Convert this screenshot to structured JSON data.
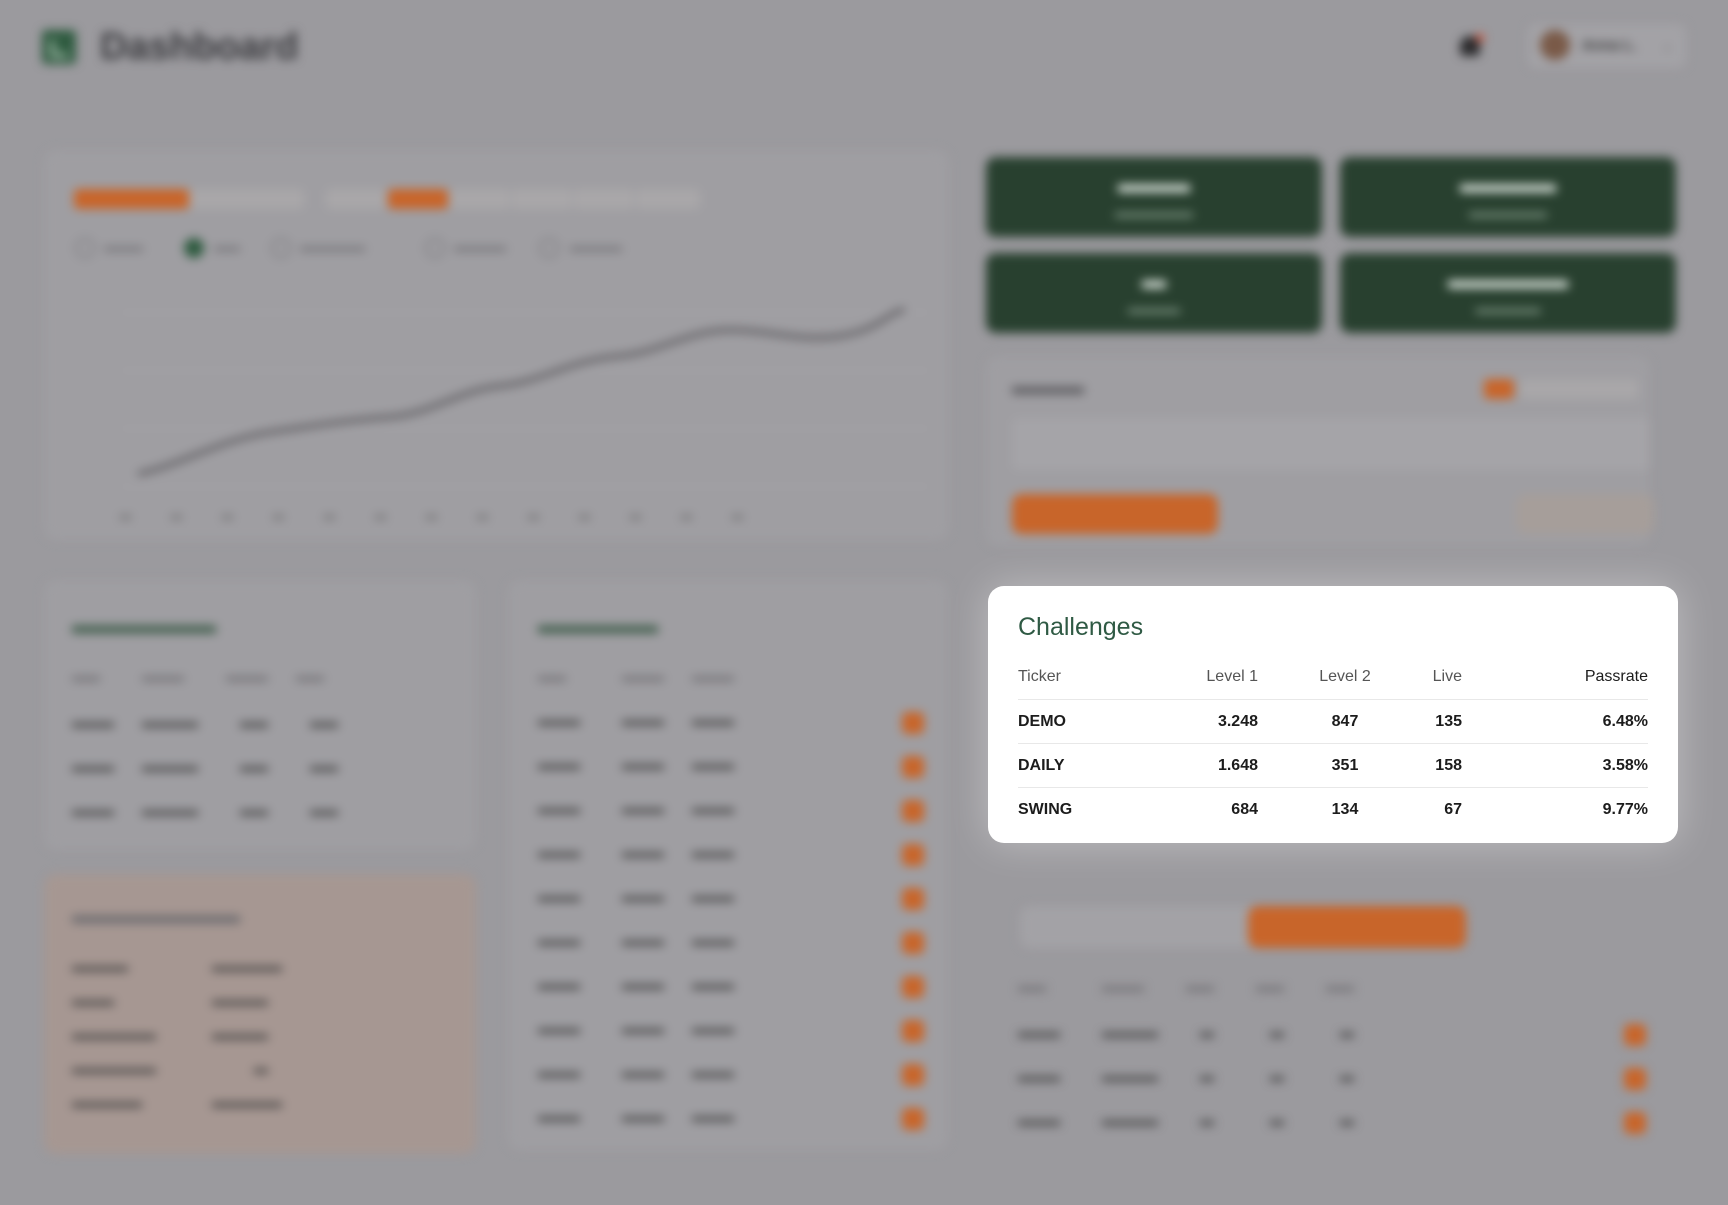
{
  "header": {
    "title": "Dashboard",
    "user": {
      "name": "Anna L."
    },
    "icons": [
      "dashboard-logo-icon",
      "bell-icon",
      "chevron-down-icon"
    ]
  },
  "challenges": {
    "title": "Challenges",
    "columns": [
      "Ticker",
      "Level 1",
      "Level 2",
      "Live",
      "Passrate"
    ],
    "rows": [
      {
        "ticker": "DEMO",
        "level1": "3.248",
        "level2": "847",
        "live": "135",
        "passrate": "6.48%"
      },
      {
        "ticker": "DAILY",
        "level1": "1.648",
        "level2": "351",
        "live": "158",
        "passrate": "3.58%"
      },
      {
        "ticker": "SWING",
        "level1": "684",
        "level2": "134",
        "live": "67",
        "passrate": "9.77%"
      }
    ]
  },
  "colors": {
    "accent": "#c8652a",
    "brand_green": "#2f5b40",
    "kpi_bg": "#28402f",
    "card_title": "#2f5a44"
  }
}
